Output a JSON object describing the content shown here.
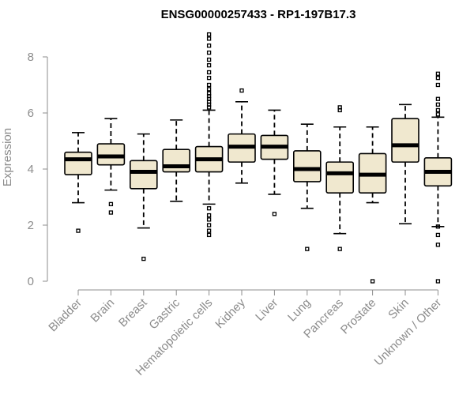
{
  "chart_data": {
    "type": "box",
    "title": "ENSG00000257433 - RP1-197B17.3",
    "ylabel": "Expression",
    "xlabel": "",
    "ylim": [
      0,
      8
    ],
    "yticks": [
      0,
      2,
      4,
      6,
      8
    ],
    "grid": false,
    "box_color": "#f0e8cf",
    "categories": [
      "Bladder",
      "Brain",
      "Breast",
      "Gastric",
      "Hematopoietic cells",
      "Kidney",
      "Liver",
      "Lung",
      "Pancreas",
      "Prostate",
      "Skin",
      "Unknown / Other"
    ],
    "boxes": [
      {
        "min": 2.8,
        "q1": 3.8,
        "median": 4.35,
        "q3": 4.6,
        "max": 5.3,
        "outliers": [
          1.8
        ]
      },
      {
        "min": 3.25,
        "q1": 4.15,
        "median": 4.45,
        "q3": 4.9,
        "max": 5.8,
        "outliers": [
          2.75,
          2.45
        ]
      },
      {
        "min": 1.9,
        "q1": 3.3,
        "median": 3.9,
        "q3": 4.3,
        "max": 5.25,
        "outliers": [
          0.8
        ]
      },
      {
        "min": 2.85,
        "q1": 3.9,
        "median": 4.1,
        "q3": 4.7,
        "max": 5.75,
        "outliers": []
      },
      {
        "min": 2.75,
        "q1": 3.9,
        "median": 4.35,
        "q3": 4.8,
        "max": 6.1,
        "outliers": [
          8.8,
          8.65,
          8.4,
          8.15,
          7.9,
          7.7,
          7.45,
          7.25,
          7.0,
          6.85,
          6.7,
          6.6,
          6.5,
          6.4,
          6.3,
          6.2,
          2.6,
          2.35,
          2.2,
          2.0,
          1.8,
          1.65
        ]
      },
      {
        "min": 3.5,
        "q1": 4.25,
        "median": 4.8,
        "q3": 5.25,
        "max": 6.4,
        "outliers": [
          6.8
        ]
      },
      {
        "min": 3.1,
        "q1": 4.35,
        "median": 4.8,
        "q3": 5.2,
        "max": 6.1,
        "outliers": [
          2.4
        ]
      },
      {
        "min": 2.6,
        "q1": 3.55,
        "median": 4.0,
        "q3": 4.65,
        "max": 5.6,
        "outliers": [
          1.15
        ]
      },
      {
        "min": 1.7,
        "q1": 3.15,
        "median": 3.85,
        "q3": 4.25,
        "max": 5.5,
        "outliers": [
          6.2,
          6.1,
          1.15
        ]
      },
      {
        "min": 2.8,
        "q1": 3.15,
        "median": 3.8,
        "q3": 4.55,
        "max": 5.5,
        "outliers": [
          0.0
        ]
      },
      {
        "min": 2.05,
        "q1": 4.25,
        "median": 4.85,
        "q3": 5.8,
        "max": 6.3,
        "outliers": []
      },
      {
        "min": 1.95,
        "q1": 3.4,
        "median": 3.9,
        "q3": 4.4,
        "max": 5.85,
        "outliers": [
          7.4,
          7.25,
          7.0,
          6.5,
          6.3,
          6.1,
          5.95,
          1.95,
          1.65,
          1.3,
          0.0
        ]
      }
    ]
  }
}
